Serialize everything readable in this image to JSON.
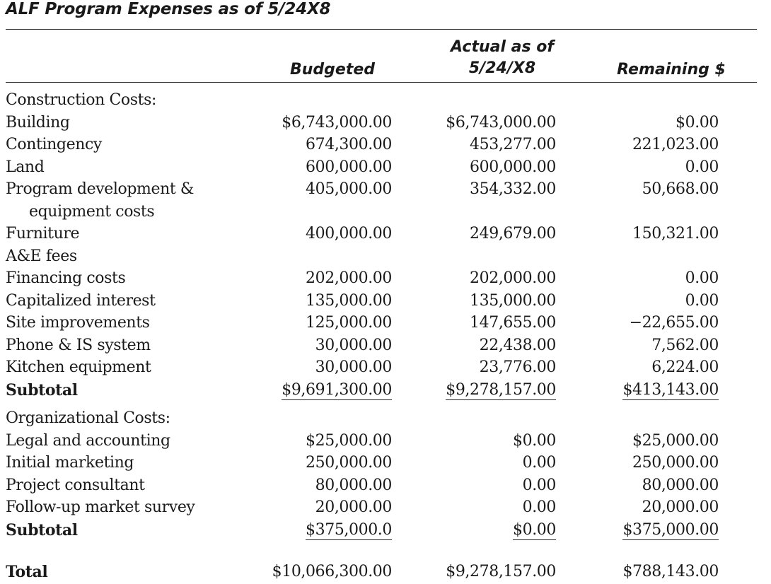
{
  "title": "ALF Program Expenses as of 5/24X8",
  "headers": {
    "budgeted": "Budgeted",
    "actual_line1": "Actual as of",
    "actual_line2": "5/24/X8",
    "remaining": "Remaining $"
  },
  "construction": {
    "heading": "Construction Costs:",
    "rows": [
      {
        "label": "Building",
        "budgeted": "$6,743,000.00",
        "actual": "$6,743,000.00",
        "remaining": "$0.00"
      },
      {
        "label": "Contingency",
        "budgeted": "674,300.00",
        "actual": "453,277.00",
        "remaining": "221,023.00"
      },
      {
        "label": "Land",
        "budgeted": "600,000.00",
        "actual": "600,000.00",
        "remaining": "0.00"
      },
      {
        "label": "Program development &",
        "label2": "equipment costs",
        "budgeted": "405,000.00",
        "actual": "354,332.00",
        "remaining": "50,668.00"
      },
      {
        "label": "Furniture",
        "budgeted": "400,000.00",
        "actual": "249,679.00",
        "remaining": "150,321.00"
      },
      {
        "label": "A&E fees",
        "budgeted": "",
        "actual": "",
        "remaining": ""
      },
      {
        "label": "Financing costs",
        "budgeted": "202,000.00",
        "actual": "202,000.00",
        "remaining": "0.00"
      },
      {
        "label": "Capitalized interest",
        "budgeted": "135,000.00",
        "actual": "135,000.00",
        "remaining": "0.00"
      },
      {
        "label": "Site improvements",
        "budgeted": "125,000.00",
        "actual": "147,655.00",
        "remaining": "−22,655.00"
      },
      {
        "label": "Phone & IS system",
        "budgeted": "30,000.00",
        "actual": "22,438.00",
        "remaining": "7,562.00"
      },
      {
        "label": "Kitchen equipment",
        "budgeted": "30,000.00",
        "actual": "23,776.00",
        "remaining": "6,224.00"
      }
    ],
    "subtotal": {
      "label": "Subtotal",
      "budgeted": "$9,691,300.00",
      "actual": "$9,278,157.00",
      "remaining": "$413,143.00"
    }
  },
  "organizational": {
    "heading": "Organizational Costs:",
    "rows": [
      {
        "label": "Legal and accounting",
        "budgeted": "$25,000.00",
        "actual": "$0.00",
        "remaining": "$25,000.00"
      },
      {
        "label": "Initial marketing",
        "budgeted": "250,000.00",
        "actual": "0.00",
        "remaining": "250,000.00"
      },
      {
        "label": "Project consultant",
        "budgeted": "80,000.00",
        "actual": "0.00",
        "remaining": "80,000.00"
      },
      {
        "label": "Follow-up market survey",
        "budgeted": "20,000.00",
        "actual": "0.00",
        "remaining": "20,000.00"
      }
    ],
    "subtotal": {
      "label": "Subtotal",
      "budgeted": "$375,000.0",
      "actual": "$0.00",
      "remaining": "$375,000.00"
    }
  },
  "total": {
    "label": "Total",
    "budgeted": "$10,066,300.00",
    "actual": "$9,278,157.00",
    "remaining": "$788,143.00"
  }
}
